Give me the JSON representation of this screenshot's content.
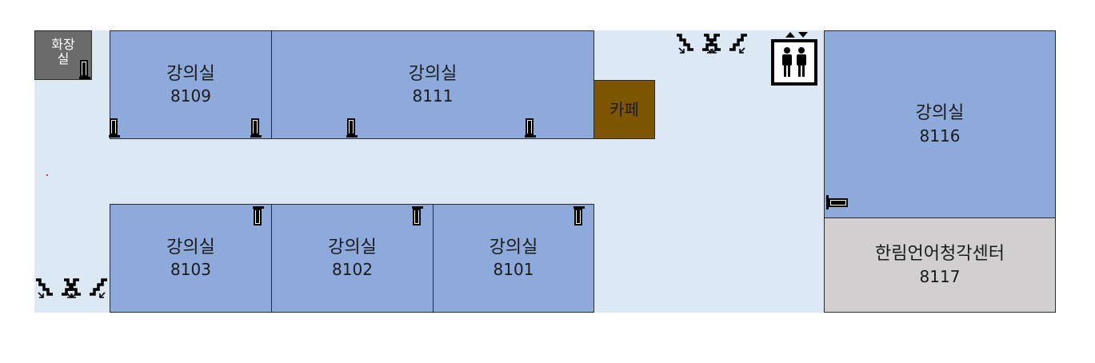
{
  "restroom": {
    "line1": "화장",
    "line2": "실"
  },
  "rooms": {
    "r8109": {
      "name": "강의실",
      "number": "8109"
    },
    "r8111": {
      "name": "강의실",
      "number": "8111"
    },
    "r8116": {
      "name": "강의실",
      "number": "8116"
    },
    "r8103": {
      "name": "강의실",
      "number": "8103"
    },
    "r8102": {
      "name": "강의실",
      "number": "8102"
    },
    "r8101": {
      "name": "강의실",
      "number": "8101"
    },
    "r8117": {
      "name": "한림언어청각센터",
      "number": "8117"
    }
  },
  "cafe": {
    "label": "카페"
  },
  "colors": {
    "lecture_room": "#8eaadb",
    "cafe": "#7e5500",
    "restroom": "#6b6b6b",
    "center": "#d1cfcf",
    "corridor": "#dde8f5"
  },
  "icons": [
    "door-icon",
    "stairs-icon",
    "elevator-icon"
  ]
}
